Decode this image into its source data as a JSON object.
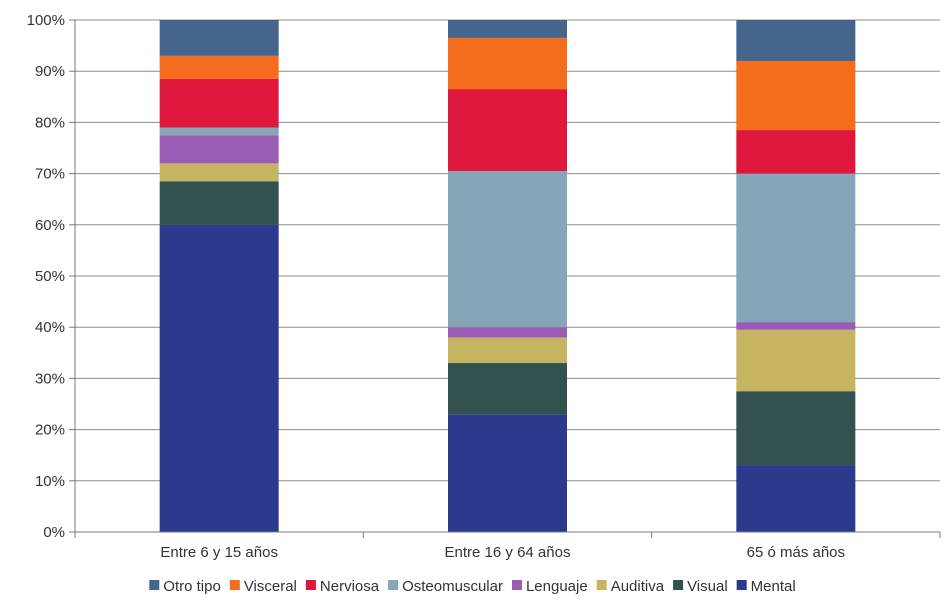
{
  "chart_data": {
    "type": "bar",
    "stacked": true,
    "normalized": true,
    "categories": [
      "Entre 6 y 15 años",
      "Entre 16 y 64 años",
      "65 ó más años"
    ],
    "series": [
      {
        "name": "Mental",
        "color": "#2b3a8c",
        "values": [
          60,
          23,
          13
        ]
      },
      {
        "name": "Visual",
        "color": "#32524f",
        "values": [
          8.5,
          10,
          14.5
        ]
      },
      {
        "name": "Auditiva",
        "color": "#c6b460",
        "values": [
          3.5,
          5,
          12
        ]
      },
      {
        "name": "Lenguaje",
        "color": "#9a5bb4",
        "values": [
          5.5,
          2,
          1.5
        ]
      },
      {
        "name": "Osteomuscular",
        "color": "#84a6b8",
        "values": [
          1.5,
          30.5,
          29
        ]
      },
      {
        "name": "Nerviosa",
        "color": "#e0173d",
        "values": [
          9.5,
          16,
          8.5
        ]
      },
      {
        "name": "Visceral",
        "color": "#f36d1d",
        "values": [
          4.5,
          10,
          13.5
        ]
      },
      {
        "name": "Otro tipo",
        "color": "#45658c",
        "values": [
          7,
          3.5,
          8
        ]
      }
    ],
    "legend_order": [
      "Otro tipo",
      "Visceral",
      "Nerviosa",
      "Osteomuscular",
      "Lenguaje",
      "Auditiva",
      "Visual",
      "Mental"
    ],
    "ylim": [
      0,
      100
    ],
    "yticks": [
      "0%",
      "10%",
      "20%",
      "30%",
      "40%",
      "50%",
      "60%",
      "70%",
      "80%",
      "90%",
      "100%"
    ],
    "grid": true,
    "legend_position": "bottom",
    "title": "",
    "xlabel": "",
    "ylabel": ""
  }
}
